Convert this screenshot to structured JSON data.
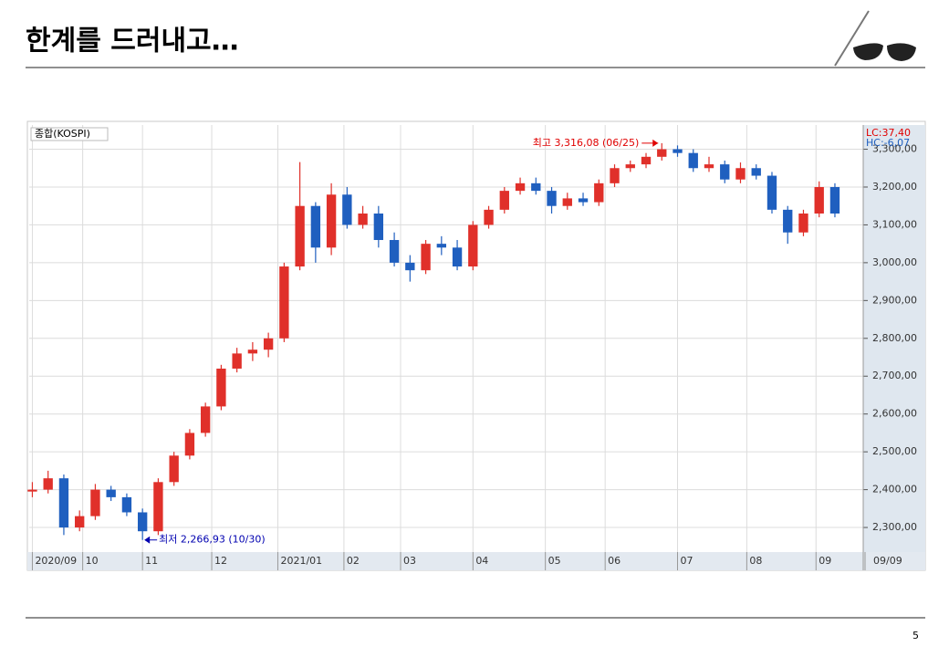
{
  "header": {
    "title": "한계를 드러내고…"
  },
  "page_number": 5,
  "chart_data": {
    "type": "candlestick",
    "series_label": "종합(KOSPI)",
    "indicators": [
      {
        "text": "LC:37,40",
        "color": "#e00000"
      },
      {
        "text": "HC:-6,07",
        "color": "#1f5fbf"
      }
    ],
    "x": [
      1,
      6,
      11,
      16,
      21,
      26,
      31,
      36,
      41,
      46,
      51,
      56,
      61,
      66,
      71,
      76,
      81,
      86,
      91,
      96,
      101,
      106,
      111,
      116,
      121,
      126,
      131,
      136,
      141,
      146,
      151,
      156,
      161,
      166,
      171,
      176,
      181,
      186,
      191,
      196,
      201,
      206,
      211,
      216,
      221,
      226,
      231,
      236,
      241,
      246,
      251,
      256
    ],
    "open": [
      2395,
      2400,
      2430,
      2300,
      2330,
      2400,
      2380,
      2340,
      2290,
      2420,
      2490,
      2550,
      2620,
      2720,
      2760,
      2770,
      2800,
      2990,
      3150,
      3040,
      3180,
      3100,
      3130,
      3060,
      3000,
      2980,
      3050,
      3040,
      2990,
      3100,
      3140,
      3190,
      3210,
      3190,
      3150,
      3170,
      3160,
      3210,
      3250,
      3260,
      3280,
      3300,
      3290,
      3250,
      3260,
      3220,
      3250,
      3230,
      3140,
      3080,
      3130,
      3200
    ],
    "high": [
      2420,
      2450,
      2440,
      2345,
      2415,
      2410,
      2390,
      2350,
      2430,
      2500,
      2560,
      2630,
      2730,
      2775,
      2790,
      2815,
      3000,
      3266,
      3160,
      3210,
      3200,
      3150,
      3150,
      3080,
      3020,
      3060,
      3070,
      3060,
      3110,
      3150,
      3200,
      3225,
      3225,
      3200,
      3185,
      3185,
      3220,
      3260,
      3270,
      3290,
      3316,
      3310,
      3300,
      3280,
      3270,
      3265,
      3260,
      3240,
      3150,
      3140,
      3215,
      3210
    ],
    "low": [
      2380,
      2390,
      2280,
      2290,
      2320,
      2370,
      2330,
      2267,
      2280,
      2410,
      2480,
      2540,
      2610,
      2710,
      2740,
      2750,
      2790,
      2980,
      3000,
      3020,
      3090,
      3090,
      3040,
      2990,
      2950,
      2970,
      3020,
      2980,
      2980,
      3090,
      3130,
      3180,
      3180,
      3130,
      3140,
      3150,
      3150,
      3200,
      3240,
      3250,
      3270,
      3280,
      3240,
      3240,
      3210,
      3210,
      3220,
      3130,
      3050,
      3070,
      3120,
      3120
    ],
    "close": [
      2400,
      2430,
      2300,
      2330,
      2400,
      2380,
      2340,
      2290,
      2420,
      2490,
      2550,
      2620,
      2720,
      2760,
      2770,
      2800,
      2990,
      3150,
      3040,
      3180,
      3100,
      3130,
      3060,
      3000,
      2980,
      3050,
      3040,
      2990,
      3100,
      3140,
      3190,
      3210,
      3190,
      3150,
      3170,
      3160,
      3210,
      3250,
      3260,
      3280,
      3300,
      3290,
      3250,
      3260,
      3220,
      3250,
      3230,
      3140,
      3080,
      3130,
      3200,
      3130
    ],
    "xlim": [
      0,
      265
    ],
    "ylim": [
      2235,
      3364
    ],
    "xticks": [
      {
        "value": 1,
        "label": "2020/09"
      },
      {
        "value": 17,
        "label": "10"
      },
      {
        "value": 36,
        "label": "11"
      },
      {
        "value": 58,
        "label": "12"
      },
      {
        "value": 79,
        "label": "2021/01"
      },
      {
        "value": 100,
        "label": "02"
      },
      {
        "value": 118,
        "label": "03"
      },
      {
        "value": 141,
        "label": "04"
      },
      {
        "value": 164,
        "label": "05"
      },
      {
        "value": 183,
        "label": "06"
      },
      {
        "value": 206,
        "label": "07"
      },
      {
        "value": 228,
        "label": "08"
      },
      {
        "value": 250,
        "label": "09"
      }
    ],
    "x_end_label": "09/09",
    "yticks": [
      {
        "value": 2300,
        "label": "2,300,00"
      },
      {
        "value": 2400,
        "label": "2,400,00"
      },
      {
        "value": 2500,
        "label": "2,500,00"
      },
      {
        "value": 2600,
        "label": "2,600,00"
      },
      {
        "value": 2700,
        "label": "2,700,00"
      },
      {
        "value": 2800,
        "label": "2,800,00"
      },
      {
        "value": 2900,
        "label": "2,900,00"
      },
      {
        "value": 3000,
        "label": "3,000,00"
      },
      {
        "value": 3100,
        "label": "3,100,00"
      },
      {
        "value": 3200,
        "label": "3,200,00"
      },
      {
        "value": 3300,
        "label": "3,300,00"
      }
    ],
    "annotations": [
      {
        "text": "최고 3,316,08 (06/25)",
        "color": "#e00000"
      },
      {
        "text": "최저 2,266,93 (10/30)",
        "color": "#0000b0"
      }
    ],
    "up_color": "#e0302a",
    "down_color": "#1f5fbf",
    "grid": true
  }
}
